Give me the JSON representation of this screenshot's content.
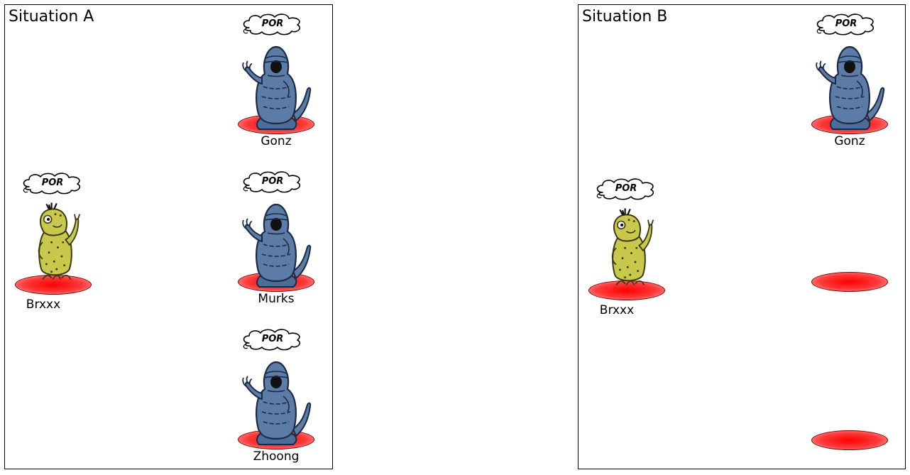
{
  "colors": {
    "disc_center": "#ff1a1a",
    "disc_edge": "#ffb3b3",
    "blue_alien": "#5c7ba6",
    "yellow_alien": "#c8c84a"
  },
  "panel_a": {
    "title": "Situation A",
    "characters": [
      {
        "name": "Gonz",
        "thought": "POR",
        "icon": "blue-alien-icon"
      },
      {
        "name": "Murks",
        "thought": "POR",
        "icon": "blue-alien-icon"
      },
      {
        "name": "Zhoong",
        "thought": "POR",
        "icon": "blue-alien-icon"
      },
      {
        "name": "Brxxx",
        "thought": "POR",
        "icon": "yellow-alien-icon"
      }
    ]
  },
  "panel_b": {
    "title": "Situation B",
    "characters": [
      {
        "name": "Gonz",
        "thought": "POR",
        "icon": "blue-alien-icon"
      },
      {
        "name": "Brxxx",
        "thought": "POR",
        "icon": "yellow-alien-icon"
      }
    ],
    "empty_spots": 2
  }
}
